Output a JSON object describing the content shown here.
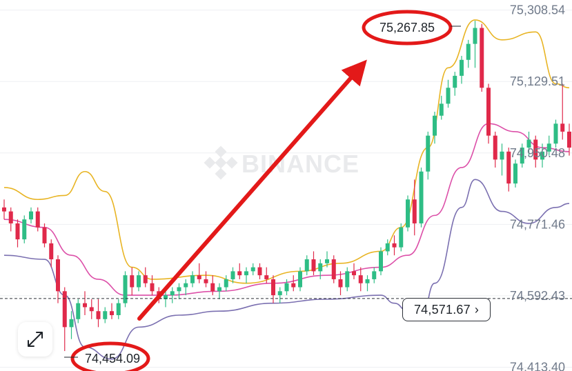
{
  "watermark": "BINANCE",
  "current_price_tag": "74,571.67",
  "chevron_icon": "chevron-right-icon",
  "expand_icon": "expand-arrows-icon",
  "colors": {
    "bull": "#2ebd85",
    "bear": "#e0294a",
    "upper_band": "#e8b423",
    "middle_band": "#dc4fa8",
    "lower_band": "#7a6fb0",
    "annotation": "#e31919",
    "axis_text": "#707a8a",
    "grid": "#eeeff2"
  },
  "chart_data": {
    "type": "candlestick",
    "y_axis": {
      "range": [
        74390,
        75320
      ],
      "ticks": [
        "75,308.54",
        "75,129.51",
        "74,950.48",
        "74,771.46",
        "74,592.43",
        "74,413.40"
      ]
    },
    "current_price": 74571.67,
    "high_label": "75,267.85",
    "low_label": "74,454.09",
    "high_value": 75267.85,
    "low_value": 74454.09,
    "candles": [
      [
        74800,
        74820,
        74770,
        74790
      ],
      [
        74790,
        74800,
        74740,
        74760
      ],
      [
        74760,
        74770,
        74700,
        74720
      ],
      [
        74720,
        74780,
        74710,
        74770
      ],
      [
        74770,
        74800,
        74760,
        74790
      ],
      [
        74790,
        74800,
        74740,
        74750
      ],
      [
        74750,
        74760,
        74700,
        74710
      ],
      [
        74710,
        74720,
        74650,
        74670
      ],
      [
        74670,
        74680,
        74560,
        74590
      ],
      [
        74590,
        74600,
        74440,
        74500
      ],
      [
        74500,
        74540,
        74470,
        74520
      ],
      [
        74520,
        74570,
        74510,
        74560
      ],
      [
        74560,
        74590,
        74530,
        74550
      ],
      [
        74550,
        74570,
        74520,
        74540
      ],
      [
        74540,
        74570,
        74500,
        74520
      ],
      [
        74520,
        74550,
        74510,
        74540
      ],
      [
        74540,
        74560,
        74520,
        74530
      ],
      [
        74530,
        74570,
        74520,
        74560
      ],
      [
        74560,
        74640,
        74550,
        74630
      ],
      [
        74630,
        74650,
        74580,
        74600
      ],
      [
        74600,
        74640,
        74590,
        74630
      ],
      [
        74630,
        74650,
        74600,
        74610
      ],
      [
        74610,
        74630,
        74580,
        74590
      ],
      [
        74590,
        74600,
        74560,
        74570
      ],
      [
        74570,
        74590,
        74550,
        74580
      ],
      [
        74580,
        74600,
        74560,
        74590
      ],
      [
        74590,
        74610,
        74570,
        74600
      ],
      [
        74600,
        74620,
        74580,
        74610
      ],
      [
        74610,
        74640,
        74600,
        74630
      ],
      [
        74630,
        74660,
        74610,
        74620
      ],
      [
        74620,
        74640,
        74600,
        74610
      ],
      [
        74610,
        74630,
        74580,
        74590
      ],
      [
        74590,
        74610,
        74570,
        74600
      ],
      [
        74600,
        74630,
        74590,
        74620
      ],
      [
        74620,
        74650,
        74610,
        74640
      ],
      [
        74640,
        74660,
        74620,
        74630
      ],
      [
        74630,
        74650,
        74610,
        74640
      ],
      [
        74640,
        74660,
        74630,
        74650
      ],
      [
        74650,
        74660,
        74620,
        74630
      ],
      [
        74630,
        74650,
        74610,
        74620
      ],
      [
        74620,
        74630,
        74560,
        74580
      ],
      [
        74580,
        74600,
        74560,
        74590
      ],
      [
        74590,
        74620,
        74580,
        74610
      ],
      [
        74610,
        74630,
        74590,
        74600
      ],
      [
        74600,
        74650,
        74590,
        74640
      ],
      [
        74640,
        74680,
        74630,
        74670
      ],
      [
        74670,
        74690,
        74630,
        74640
      ],
      [
        74640,
        74670,
        74620,
        74660
      ],
      [
        74660,
        74690,
        74650,
        74670
      ],
      [
        74670,
        74680,
        74610,
        74620
      ],
      [
        74620,
        74640,
        74580,
        74600
      ],
      [
        74600,
        74650,
        74590,
        74640
      ],
      [
        74640,
        74660,
        74620,
        74630
      ],
      [
        74630,
        74650,
        74590,
        74610
      ],
      [
        74610,
        74630,
        74590,
        74620
      ],
      [
        74620,
        74650,
        74610,
        74640
      ],
      [
        74640,
        74700,
        74630,
        74690
      ],
      [
        74690,
        74720,
        74680,
        74710
      ],
      [
        74710,
        74730,
        74680,
        74700
      ],
      [
        74700,
        74760,
        74690,
        74750
      ],
      [
        74750,
        74830,
        74740,
        74820
      ],
      [
        74820,
        74870,
        74730,
        74760
      ],
      [
        74760,
        74900,
        74750,
        74890
      ],
      [
        74890,
        74990,
        74870,
        74980
      ],
      [
        74980,
        75040,
        74960,
        75030
      ],
      [
        75030,
        75080,
        75020,
        75060
      ],
      [
        75060,
        75120,
        75050,
        75100
      ],
      [
        75100,
        75140,
        75080,
        75130
      ],
      [
        75130,
        75180,
        75110,
        75170
      ],
      [
        75170,
        75220,
        75150,
        75210
      ],
      [
        75210,
        75268,
        75150,
        75250
      ],
      [
        75250,
        75260,
        75090,
        75100
      ],
      [
        75100,
        75110,
        74960,
        74980
      ],
      [
        74980,
        74990,
        74900,
        74920
      ],
      [
        74920,
        74960,
        74880,
        74940
      ],
      [
        74940,
        74950,
        74840,
        74860
      ],
      [
        74860,
        74920,
        74850,
        74910
      ],
      [
        74910,
        74960,
        74900,
        74950
      ],
      [
        74950,
        74990,
        74930,
        74970
      ],
      [
        74970,
        74980,
        74900,
        74920
      ],
      [
        74920,
        74960,
        74900,
        74940
      ],
      [
        74940,
        74980,
        74930,
        74960
      ],
      [
        74960,
        75020,
        74950,
        75010
      ],
      [
        75010,
        75110,
        74970,
        74990
      ],
      [
        74990,
        75010,
        74930,
        74950
      ]
    ],
    "bollinger": {
      "upper": [
        [
          0,
          74850
        ],
        [
          5,
          74820
        ],
        [
          9,
          74830
        ],
        [
          12,
          74890
        ],
        [
          15,
          74840
        ],
        [
          19,
          74650
        ],
        [
          22,
          74620
        ],
        [
          30,
          74630
        ],
        [
          36,
          74610
        ],
        [
          44,
          74640
        ],
        [
          50,
          74660
        ],
        [
          56,
          74690
        ],
        [
          59,
          74750
        ],
        [
          63,
          74950
        ],
        [
          66,
          75150
        ],
        [
          70,
          75270
        ],
        [
          74,
          75220
        ],
        [
          79,
          75240
        ],
        [
          82,
          75110
        ],
        [
          84,
          75100
        ]
      ],
      "middle": [
        [
          0,
          74770
        ],
        [
          6,
          74750
        ],
        [
          10,
          74680
        ],
        [
          14,
          74620
        ],
        [
          18,
          74580
        ],
        [
          24,
          74580
        ],
        [
          32,
          74590
        ],
        [
          40,
          74610
        ],
        [
          48,
          74630
        ],
        [
          56,
          74650
        ],
        [
          60,
          74680
        ],
        [
          64,
          74780
        ],
        [
          68,
          74900
        ],
        [
          72,
          75010
        ],
        [
          76,
          74990
        ],
        [
          80,
          74950
        ],
        [
          84,
          74940
        ]
      ],
      "lower": [
        [
          0,
          74680
        ],
        [
          6,
          74670
        ],
        [
          9,
          74580
        ],
        [
          12,
          74450
        ],
        [
          16,
          74420
        ],
        [
          20,
          74500
        ],
        [
          26,
          74530
        ],
        [
          32,
          74540
        ],
        [
          40,
          74560
        ],
        [
          48,
          74570
        ],
        [
          56,
          74580
        ],
        [
          58,
          74560
        ],
        [
          60,
          74540
        ],
        [
          62,
          74520
        ],
        [
          64,
          74610
        ],
        [
          68,
          74800
        ],
        [
          70,
          74870
        ],
        [
          74,
          74790
        ],
        [
          78,
          74760
        ],
        [
          82,
          74800
        ],
        [
          84,
          74810
        ]
      ]
    }
  }
}
